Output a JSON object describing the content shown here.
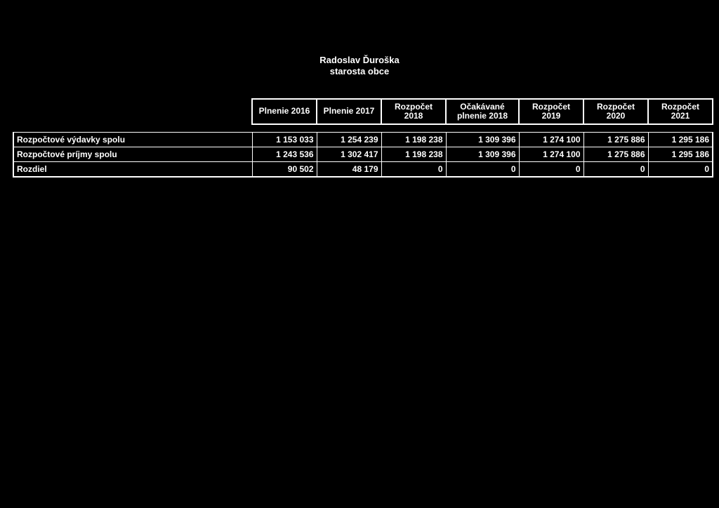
{
  "signature": {
    "name": "Radoslav Ďuroška",
    "role": "starosta obce"
  },
  "table": {
    "colors": {
      "background": "#000000",
      "text": "#ffffff",
      "border": "#ffffff"
    },
    "columns": [
      {
        "label_line1": "Plnenie 2016",
        "label_line2": ""
      },
      {
        "label_line1": "Plnenie  2017",
        "label_line2": ""
      },
      {
        "label_line1": "Rozpočet",
        "label_line2": "2018"
      },
      {
        "label_line1": "Očakávané",
        "label_line2": "plnenie 2018"
      },
      {
        "label_line1": "Rozpočet",
        "label_line2": "2019"
      },
      {
        "label_line1": "Rozpočet",
        "label_line2": "2020"
      },
      {
        "label_line1": "Rozpočet",
        "label_line2": "2021"
      }
    ],
    "rows": [
      {
        "label": "Rozpočtové výdavky spolu",
        "cells": [
          "1 153 033",
          "1 254 239",
          "1 198 238",
          "1 309 396",
          "1 274 100",
          "1 275 886",
          "1 295 186"
        ]
      },
      {
        "label": "Rozpočtové príjmy spolu",
        "cells": [
          "1 243 536",
          "1 302 417",
          "1 198 238",
          "1 309 396",
          "1 274 100",
          "1 275 886",
          "1 295 186"
        ]
      },
      {
        "label": "Rozdiel",
        "cells": [
          "90 502",
          "48 179",
          "0",
          "0",
          "0",
          "0",
          "0"
        ]
      }
    ]
  }
}
